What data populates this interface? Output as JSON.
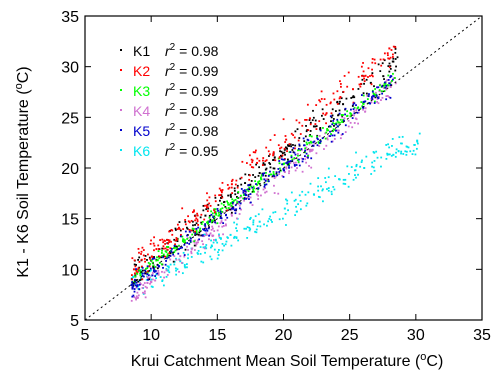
{
  "chart_data": {
    "type": "scatter",
    "title": "",
    "xlabel": "Krui Catchment Mean Soil Temperature (",
    "xlabel_sup": "o",
    "xlabel_end": "C)",
    "ylabel": "K1 - K6 Soil Temperature (",
    "ylabel_sup": "o",
    "ylabel_end": "C)",
    "xlim": [
      5,
      35
    ],
    "ylim": [
      5,
      35
    ],
    "xticks": [
      "5",
      "10",
      "15",
      "20",
      "25",
      "30",
      "35"
    ],
    "yticks": [
      "5",
      "10",
      "15",
      "20",
      "25",
      "30",
      "35"
    ],
    "grid": false,
    "legend_position": "top-left",
    "reference_line": "1:1 dashed",
    "series": [
      {
        "name": "K1",
        "r2": "= 0.98",
        "color": "#000000",
        "x_range": [
          8.5,
          29
        ],
        "slope": 1.08,
        "intercept": -0.2,
        "noise": 1.0,
        "points": [
          [
            8.8,
            9.4
          ],
          [
            10.2,
            11.2
          ],
          [
            12.0,
            13.0
          ],
          [
            14.1,
            15.3
          ],
          [
            16.0,
            17.3
          ],
          [
            18.2,
            19.5
          ],
          [
            20.1,
            21.8
          ],
          [
            22.3,
            24.1
          ],
          [
            24.5,
            26.3
          ],
          [
            26.6,
            28.4
          ],
          [
            28.3,
            30.5
          ]
        ]
      },
      {
        "name": "K2",
        "r2": "= 0.99",
        "color": "#ff0000",
        "x_range": [
          8.5,
          28.5
        ],
        "slope": 1.1,
        "intercept": 0.5,
        "noise": 1.1,
        "points": [
          [
            8.7,
            10.0
          ],
          [
            10.4,
            12.0
          ],
          [
            12.1,
            14.1
          ],
          [
            14.2,
            16.3
          ],
          [
            16.1,
            18.4
          ],
          [
            18.0,
            20.5
          ],
          [
            20.2,
            22.8
          ],
          [
            22.0,
            24.9
          ],
          [
            24.3,
            27.0
          ],
          [
            26.2,
            29.1
          ],
          [
            28.0,
            31.8
          ]
        ]
      },
      {
        "name": "K3",
        "r2": "= 0.99",
        "color": "#00ff00",
        "x_range": [
          8.5,
          28.5
        ],
        "slope": 1.0,
        "intercept": 0.4,
        "noise": 0.5,
        "points": [
          [
            8.8,
            9.3
          ],
          [
            10.5,
            10.9
          ],
          [
            12.4,
            12.8
          ],
          [
            14.3,
            14.7
          ],
          [
            16.2,
            16.6
          ],
          [
            18.1,
            18.5
          ],
          [
            20.0,
            20.4
          ],
          [
            22.1,
            22.5
          ],
          [
            24.0,
            24.4
          ],
          [
            26.1,
            26.5
          ],
          [
            28.2,
            28.6
          ]
        ]
      },
      {
        "name": "K4",
        "r2": "= 0.98",
        "color": "#d070d0",
        "x_range": [
          8.5,
          28.5
        ],
        "slope": 1.05,
        "intercept": -1.5,
        "noise": 0.9,
        "points": [
          [
            9.0,
            7.2
          ],
          [
            10.3,
            8.9
          ],
          [
            12.2,
            11.3
          ],
          [
            14.2,
            13.4
          ],
          [
            16.1,
            15.3
          ],
          [
            18.0,
            17.4
          ],
          [
            20.1,
            19.6
          ],
          [
            22.2,
            21.8
          ],
          [
            24.1,
            23.7
          ],
          [
            26.2,
            25.9
          ],
          [
            28.1,
            28.0
          ]
        ]
      },
      {
        "name": "K5",
        "r2": "= 0.98",
        "color": "#0000cc",
        "x_range": [
          8.5,
          28.5
        ],
        "slope": 1.02,
        "intercept": -0.3,
        "noise": 0.8,
        "points": [
          [
            8.7,
            8.6
          ],
          [
            10.2,
            10.1
          ],
          [
            12.1,
            12.0
          ],
          [
            14.0,
            13.9
          ],
          [
            16.2,
            16.1
          ],
          [
            18.1,
            18.0
          ],
          [
            20.0,
            19.9
          ],
          [
            22.2,
            22.2
          ],
          [
            24.1,
            24.1
          ],
          [
            26.0,
            26.0
          ],
          [
            28.1,
            28.2
          ]
        ]
      },
      {
        "name": "K6",
        "r2": "= 0.95",
        "color": "#00e5ee",
        "x_range": [
          8.5,
          30.5
        ],
        "slope": 0.67,
        "intercept": 2.5,
        "noise": 1.0,
        "points": [
          [
            8.8,
            8.6
          ],
          [
            10.4,
            9.5
          ],
          [
            12.2,
            10.8
          ],
          [
            14.1,
            12.2
          ],
          [
            16.0,
            13.4
          ],
          [
            18.2,
            14.7
          ],
          [
            20.1,
            16.0
          ],
          [
            22.3,
            17.4
          ],
          [
            24.2,
            18.9
          ],
          [
            26.1,
            20.0
          ],
          [
            28.3,
            21.3
          ],
          [
            30.1,
            22.7
          ]
        ]
      }
    ]
  }
}
